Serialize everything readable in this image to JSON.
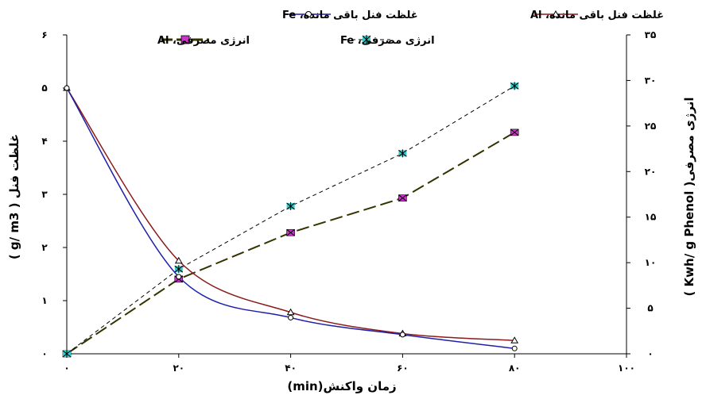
{
  "chart_data": {
    "type": "line",
    "xlabel": "زمان واکنش(min)",
    "ylabel_left": "غلظت فنل ( g/ m3 )",
    "ylabel_right": "انرژی مصرفی( Kwh/ g Phenol )",
    "x_ticks": [
      "۰",
      "۲۰",
      "۴۰",
      "۶۰",
      "۸۰",
      "۱۰۰"
    ],
    "x_tick_values": [
      0,
      20,
      40,
      60,
      80,
      100
    ],
    "y_left_ticks": [
      "۰",
      "۱",
      "۲",
      "۳",
      "۴",
      "۵",
      "۶"
    ],
    "y_left_tick_values": [
      0,
      1,
      2,
      3,
      4,
      5,
      6
    ],
    "y_right_ticks": [
      "۰",
      "۵",
      "۱۰",
      "۱۵",
      "۲۰",
      "۲۵",
      "۳۰",
      "۳۵"
    ],
    "y_right_tick_values": [
      0,
      5,
      10,
      15,
      20,
      25,
      30,
      35
    ],
    "xlim": [
      0,
      100
    ],
    "ylim_left": [
      0,
      6
    ],
    "ylim_right": [
      0,
      35
    ],
    "grid": false,
    "legend_position": "top",
    "series": [
      {
        "name": "غلظت فنل باقی مانده، Al",
        "axis": "left",
        "color": "#8B1A1A",
        "marker": "triangle",
        "style": "solid",
        "x": [
          0,
          20,
          40,
          60,
          80
        ],
        "y": [
          5.0,
          1.75,
          0.78,
          0.38,
          0.25
        ]
      },
      {
        "name": "غلظت فنل باقی مانده، Fe",
        "axis": "left",
        "color": "#1F1FA8",
        "marker": "circle",
        "style": "solid",
        "x": [
          0,
          20,
          40,
          60,
          80
        ],
        "y": [
          5.0,
          1.45,
          0.68,
          0.36,
          0.1
        ]
      },
      {
        "name": "انرژی مصرفی، Al",
        "axis": "right",
        "color": "#333300",
        "marker": "x-box",
        "style": "long-dash",
        "x": [
          0,
          20,
          40,
          60,
          80
        ],
        "y": [
          0,
          8.2,
          13.3,
          17.1,
          24.3
        ]
      },
      {
        "name": "انرژی مصرفی، Fe",
        "axis": "right",
        "color": "#000000",
        "marker": "asterisk",
        "style": "dash",
        "x": [
          0,
          20,
          40,
          60,
          80
        ],
        "y": [
          0,
          9.3,
          16.2,
          22.0,
          29.4
        ]
      }
    ]
  }
}
